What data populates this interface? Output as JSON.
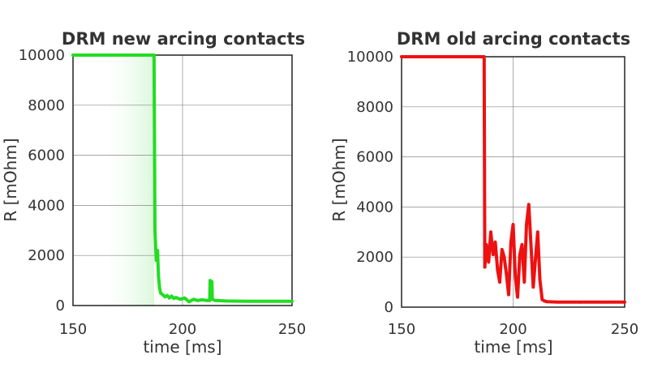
{
  "chart_data": [
    {
      "type": "line",
      "title": "DRM new arcing contacts",
      "xlabel": "time [ms]",
      "ylabel": "R [mOhm]",
      "xlim": [
        150,
        250
      ],
      "ylim": [
        0,
        10000
      ],
      "xticks": [
        150,
        200,
        250
      ],
      "yticks": [
        0,
        2000,
        4000,
        6000,
        8000,
        10000
      ],
      "grid": true,
      "color": "#22dd22",
      "series": [
        {
          "x": [
            150,
            187,
            187.4,
            188,
            188.6,
            189,
            189.5,
            190,
            192,
            193,
            194,
            195,
            196,
            197,
            199,
            201,
            203,
            205,
            207,
            209,
            211,
            212.4,
            212.6,
            213.4,
            213.6,
            215,
            220,
            230,
            240,
            250
          ],
          "y": [
            10000,
            10000,
            3000,
            1800,
            2200,
            1200,
            700,
            500,
            350,
            400,
            300,
            380,
            280,
            320,
            250,
            300,
            150,
            250,
            200,
            230,
            200,
            200,
            1000,
            950,
            250,
            200,
            180,
            170,
            170,
            170
          ]
        }
      ]
    },
    {
      "type": "line",
      "title": "DRM old arcing contacts",
      "xlabel": "time [ms]",
      "ylabel": "R [mOhm]",
      "xlim": [
        150,
        250
      ],
      "ylim": [
        0,
        10000
      ],
      "xticks": [
        150,
        200,
        250
      ],
      "yticks": [
        0,
        2000,
        4000,
        6000,
        8000,
        10000
      ],
      "grid": true,
      "color": "#ee1111",
      "series": [
        {
          "x": [
            150,
            187,
            187.3,
            188,
            189,
            190,
            191,
            192,
            193,
            194,
            195,
            196,
            197,
            198,
            199,
            200,
            201,
            202,
            203,
            204,
            205,
            206,
            207,
            208,
            209,
            210,
            211,
            212,
            213,
            214,
            215,
            220,
            230,
            240,
            250
          ],
          "y": [
            10000,
            10000,
            1600,
            2500,
            1800,
            3000,
            2100,
            2600,
            1500,
            1000,
            2300,
            2000,
            1300,
            500,
            2600,
            3300,
            1200,
            400,
            2100,
            2500,
            1000,
            3300,
            4100,
            2500,
            800,
            1900,
            3000,
            1100,
            300,
            250,
            220,
            200,
            200,
            200,
            200
          ]
        }
      ]
    }
  ]
}
